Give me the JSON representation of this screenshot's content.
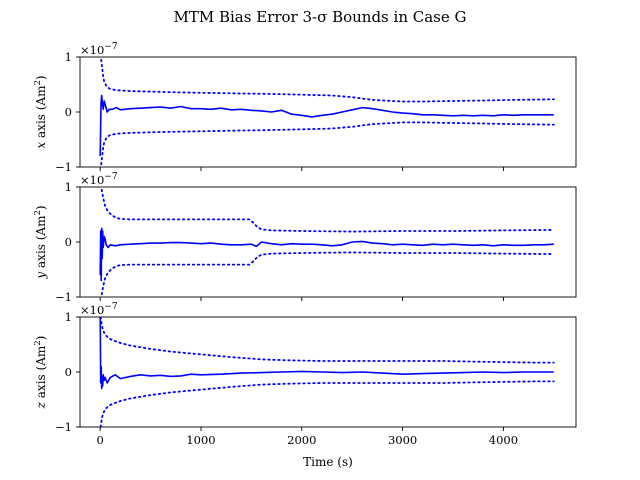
{
  "chart_data": {
    "type": "line",
    "title": "MTM Bias Error 3-σ Bounds in Case G",
    "xlabel": "Time (s)",
    "xlim": [
      -200,
      4720
    ],
    "x_ticks": [
      0,
      1000,
      2000,
      3000,
      4000
    ],
    "x_tick_labels": [
      "0",
      "1000",
      "2000",
      "3000",
      "4000"
    ],
    "grid": false,
    "subplots": [
      {
        "id": "x",
        "ylabel": "x axis (Am²)",
        "ylabel_var": "x",
        "ylabel_text": " axis (Am",
        "ylabel_sup": "2",
        "ylabel_end": ")",
        "multiplier": "×10",
        "multiplier_exp": "−7",
        "ylim": [
          -1,
          1
        ],
        "y_ticks": [
          -1,
          0,
          1
        ],
        "y_tick_labels": [
          "−1",
          "0",
          "1"
        ],
        "series": [
          {
            "style": "solid",
            "color": "#0000ff",
            "x": [
              0,
              8,
              15,
              22,
              30,
              40,
              55,
              70,
              90,
              120,
              160,
              200,
              300,
              400,
              500,
              600,
              700,
              800,
              900,
              1000,
              1100,
              1200,
              1300,
              1400,
              1500,
              1600,
              1700,
              1800,
              1900,
              2000,
              2100,
              2200,
              2300,
              2400,
              2500,
              2600,
              2700,
              2800,
              2900,
              3000,
              3100,
              3200,
              3300,
              3400,
              3500,
              3600,
              3700,
              3800,
              3900,
              4000,
              4100,
              4200,
              4300,
              4400,
              4500
            ],
            "y": [
              -0.8,
              0.15,
              0.3,
              0.15,
              0.05,
              0.2,
              0.1,
              0.0,
              0.05,
              0.05,
              0.08,
              0.04,
              0.06,
              0.07,
              0.08,
              0.09,
              0.07,
              0.1,
              0.06,
              0.06,
              0.05,
              0.07,
              0.04,
              0.05,
              0.03,
              0.02,
              0.0,
              0.03,
              -0.04,
              -0.06,
              -0.09,
              -0.06,
              -0.04,
              0.0,
              0.04,
              0.08,
              0.06,
              0.03,
              0.0,
              -0.02,
              -0.03,
              -0.05,
              -0.05,
              -0.06,
              -0.07,
              -0.06,
              -0.07,
              -0.06,
              -0.07,
              -0.05,
              -0.06,
              -0.05,
              -0.05,
              -0.05,
              -0.05
            ]
          },
          {
            "style": "dotted",
            "color": "#0000ff",
            "x": [
              10,
              20,
              30,
              40,
              60,
              80,
              100,
              150,
              200,
              300,
              500,
              700,
              1000,
              1300,
              1600,
              1900,
              2100,
              2300,
              2500,
              2700,
              2900,
              3000,
              3200,
              3500,
              3800,
              4100,
              4500
            ],
            "y": [
              0.95,
              0.8,
              0.65,
              0.55,
              0.48,
              0.44,
              0.42,
              0.4,
              0.39,
              0.38,
              0.37,
              0.36,
              0.35,
              0.34,
              0.33,
              0.32,
              0.31,
              0.3,
              0.27,
              0.22,
              0.2,
              0.19,
              0.19,
              0.2,
              0.21,
              0.22,
              0.23
            ]
          },
          {
            "style": "dotted",
            "color": "#0000ff",
            "x": [
              10,
              20,
              30,
              40,
              60,
              80,
              100,
              150,
              200,
              300,
              500,
              700,
              1000,
              1300,
              1600,
              1900,
              2100,
              2300,
              2500,
              2700,
              2900,
              3000,
              3200,
              3500,
              3800,
              4100,
              4500
            ],
            "y": [
              -0.95,
              -0.8,
              -0.65,
              -0.55,
              -0.48,
              -0.44,
              -0.42,
              -0.4,
              -0.39,
              -0.38,
              -0.37,
              -0.36,
              -0.35,
              -0.34,
              -0.33,
              -0.32,
              -0.31,
              -0.3,
              -0.27,
              -0.22,
              -0.2,
              -0.19,
              -0.19,
              -0.2,
              -0.21,
              -0.22,
              -0.23
            ]
          }
        ]
      },
      {
        "id": "y",
        "ylabel": "y axis (Am²)",
        "ylabel_var": "y",
        "ylabel_text": " axis (Am",
        "ylabel_sup": "2",
        "ylabel_end": ")",
        "multiplier": "×10",
        "multiplier_exp": "−7",
        "ylim": [
          -1,
          1
        ],
        "y_ticks": [
          -1,
          0,
          1
        ],
        "y_tick_labels": [
          "−1",
          "0",
          "1"
        ],
        "series": [
          {
            "style": "solid",
            "color": "#0000ff",
            "x": [
              0,
              5,
              10,
              15,
              20,
              25,
              30,
              40,
              50,
              60,
              80,
              100,
              150,
              200,
              300,
              400,
              500,
              600,
              700,
              800,
              900,
              1000,
              1100,
              1200,
              1300,
              1400,
              1500,
              1550,
              1600,
              1700,
              1800,
              1900,
              2000,
              2100,
              2200,
              2300,
              2400,
              2500,
              2600,
              2700,
              2800,
              2900,
              3000,
              3100,
              3200,
              3300,
              3400,
              3500,
              3600,
              3700,
              3800,
              3900,
              4000,
              4100,
              4200,
              4300,
              4400,
              4500
            ],
            "y": [
              -0.6,
              0.2,
              -0.7,
              0.25,
              -0.3,
              0.2,
              -0.1,
              0.1,
              0.05,
              -0.05,
              -0.1,
              -0.05,
              -0.07,
              -0.05,
              -0.04,
              -0.03,
              -0.02,
              -0.02,
              -0.01,
              -0.01,
              -0.02,
              -0.03,
              -0.02,
              -0.04,
              -0.05,
              -0.05,
              -0.04,
              -0.08,
              0.0,
              -0.03,
              -0.05,
              -0.03,
              -0.04,
              -0.04,
              -0.05,
              -0.07,
              -0.05,
              0.0,
              0.01,
              -0.02,
              -0.03,
              -0.05,
              -0.04,
              -0.05,
              -0.06,
              -0.04,
              -0.05,
              -0.04,
              -0.05,
              -0.06,
              -0.05,
              -0.07,
              -0.05,
              -0.06,
              -0.06,
              -0.05,
              -0.05,
              -0.04
            ]
          },
          {
            "style": "dotted",
            "color": "#0000ff",
            "x": [
              15,
              30,
              50,
              80,
              120,
              160,
              200,
              300,
              500,
              800,
              1100,
              1400,
              1480,
              1520,
              1560,
              1600,
              1700,
              2000,
              2500,
              3000,
              3500,
              4000,
              4500
            ],
            "y": [
              0.95,
              0.8,
              0.65,
              0.55,
              0.48,
              0.44,
              0.42,
              0.41,
              0.41,
              0.41,
              0.41,
              0.41,
              0.41,
              0.35,
              0.27,
              0.23,
              0.21,
              0.2,
              0.19,
              0.2,
              0.2,
              0.21,
              0.22
            ]
          },
          {
            "style": "dotted",
            "color": "#0000ff",
            "x": [
              15,
              30,
              50,
              80,
              120,
              160,
              200,
              300,
              500,
              800,
              1100,
              1400,
              1480,
              1520,
              1560,
              1600,
              1700,
              2000,
              2500,
              3000,
              3500,
              4000,
              4500
            ],
            "y": [
              -0.95,
              -0.8,
              -0.65,
              -0.55,
              -0.48,
              -0.44,
              -0.42,
              -0.41,
              -0.41,
              -0.41,
              -0.41,
              -0.41,
              -0.41,
              -0.35,
              -0.27,
              -0.23,
              -0.21,
              -0.2,
              -0.19,
              -0.2,
              -0.2,
              -0.21,
              -0.22
            ]
          }
        ]
      },
      {
        "id": "z",
        "ylabel": "z axis (Am²)",
        "ylabel_var": "z",
        "ylabel_text": " axis (Am",
        "ylabel_sup": "2",
        "ylabel_end": ")",
        "multiplier": "×10",
        "multiplier_exp": "−7",
        "ylim": [
          -1,
          1
        ],
        "y_ticks": [
          -1,
          0,
          1
        ],
        "y_tick_labels": [
          "−1",
          "0",
          "1"
        ],
        "series": [
          {
            "style": "solid",
            "color": "#0000ff",
            "x": [
              0,
              5,
              10,
              15,
              20,
              25,
              30,
              40,
              50,
              70,
              100,
              150,
              200,
              250,
              300,
              400,
              500,
              600,
              700,
              800,
              900,
              1000,
              1200,
              1400,
              1600,
              1800,
              2000,
              2200,
              2400,
              2600,
              2800,
              3000,
              3200,
              3400,
              3600,
              3800,
              4000,
              4200,
              4400,
              4500
            ],
            "y": [
              1.0,
              -0.2,
              0.1,
              -0.3,
              -0.1,
              -0.25,
              -0.05,
              -0.15,
              -0.1,
              -0.2,
              -0.1,
              -0.05,
              -0.12,
              -0.1,
              -0.08,
              -0.05,
              -0.07,
              -0.06,
              -0.08,
              -0.07,
              -0.04,
              -0.05,
              -0.04,
              -0.02,
              -0.01,
              0.0,
              0.01,
              0.0,
              -0.01,
              0.0,
              -0.02,
              -0.04,
              -0.03,
              -0.02,
              -0.01,
              0.0,
              -0.01,
              0.0,
              0.0,
              0.0
            ]
          },
          {
            "style": "dotted",
            "color": "#0000ff",
            "x": [
              5,
              10,
              20,
              30,
              50,
              80,
              120,
              200,
              300,
              500,
              700,
              1000,
              1300,
              1600,
              1900,
              2200,
              2500,
              2800,
              3100,
              3400,
              3700,
              4000,
              4300,
              4500
            ],
            "y": [
              1.0,
              0.92,
              0.82,
              0.75,
              0.68,
              0.62,
              0.58,
              0.53,
              0.48,
              0.42,
              0.37,
              0.32,
              0.27,
              0.23,
              0.21,
              0.2,
              0.2,
              0.2,
              0.2,
              0.2,
              0.19,
              0.18,
              0.17,
              0.17
            ]
          },
          {
            "style": "dotted",
            "color": "#0000ff",
            "x": [
              5,
              10,
              20,
              30,
              50,
              80,
              120,
              200,
              300,
              500,
              700,
              1000,
              1300,
              1600,
              1900,
              2200,
              2500,
              2800,
              3100,
              3400,
              3700,
              4000,
              4300,
              4500
            ],
            "y": [
              -1.0,
              -0.92,
              -0.82,
              -0.75,
              -0.68,
              -0.62,
              -0.58,
              -0.53,
              -0.48,
              -0.42,
              -0.37,
              -0.32,
              -0.27,
              -0.23,
              -0.21,
              -0.2,
              -0.2,
              -0.2,
              -0.2,
              -0.2,
              -0.19,
              -0.18,
              -0.17,
              -0.17
            ]
          }
        ]
      }
    ]
  }
}
